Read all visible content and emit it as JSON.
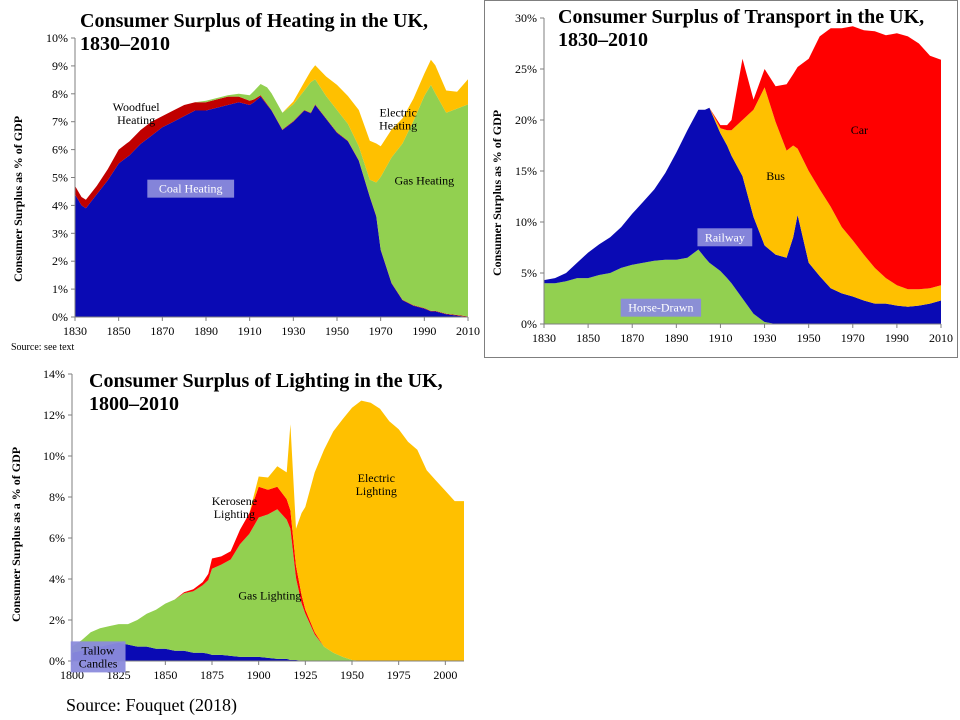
{
  "colors": {
    "coal": "#0a0ab4",
    "wood": "#c00000",
    "gas": "#92d050",
    "electric": "#ffc000",
    "horse": "#92d050",
    "railway": "#0a0ab4",
    "bus": "#ffc000",
    "car": "#ff0000",
    "tallow": "#0a0ab4",
    "kerosene": "#ff0000"
  },
  "source_small": "Source: see text",
  "source_big": "Source:  Fouquet (2018)",
  "chart_data": [
    {
      "id": "heating",
      "type": "area",
      "title": "Consumer Surplus  of Heating in the UK,\n1830–2010",
      "ylabel": "Consumer Surplus as % of GDP",
      "xlim": [
        1830,
        2010
      ],
      "ylim": [
        0,
        10
      ],
      "xticks": [
        "1830",
        "1850",
        "1870",
        "1890",
        "1910",
        "1930",
        "1950",
        "1970",
        "1990",
        "2010"
      ],
      "yticks": [
        "0%",
        "1%",
        "2%",
        "3%",
        "4%",
        "5%",
        "6%",
        "7%",
        "8%",
        "9%",
        "10%"
      ],
      "x": [
        1830,
        1833,
        1835,
        1840,
        1845,
        1850,
        1855,
        1860,
        1865,
        1870,
        1875,
        1880,
        1885,
        1890,
        1895,
        1900,
        1905,
        1910,
        1912,
        1915,
        1918,
        1920,
        1925,
        1930,
        1935,
        1938,
        1940,
        1945,
        1950,
        1955,
        1960,
        1965,
        1968,
        1970,
        1975,
        1980,
        1985,
        1990,
        1993,
        1995,
        2000,
        2005,
        2010
      ],
      "series": [
        {
          "name": "Coal Heating",
          "key": "coal",
          "values": [
            4.4,
            4.0,
            3.9,
            4.4,
            4.9,
            5.5,
            5.8,
            6.2,
            6.5,
            6.8,
            7.0,
            7.2,
            7.4,
            7.4,
            7.5,
            7.6,
            7.7,
            7.6,
            7.7,
            7.9,
            7.6,
            7.4,
            6.7,
            7.0,
            7.4,
            7.3,
            7.6,
            7.1,
            6.6,
            6.3,
            5.6,
            4.3,
            3.6,
            2.4,
            1.2,
            0.6,
            0.4,
            0.3,
            0.2,
            0.2,
            0.1,
            0.05,
            0.0
          ]
        },
        {
          "name": "Woodfuel Heating",
          "key": "wood",
          "values": [
            0.3,
            0.3,
            0.3,
            0.3,
            0.4,
            0.5,
            0.5,
            0.5,
            0.5,
            0.4,
            0.4,
            0.4,
            0.3,
            0.3,
            0.3,
            0.3,
            0.2,
            0.15,
            0.1,
            0.05,
            0.03,
            0.02,
            0.02,
            0.02,
            0.02,
            0.02,
            0.02,
            0.02,
            0.02,
            0.02,
            0.02,
            0.02,
            0.02,
            0.02,
            0.02,
            0.02,
            0.02,
            0.02,
            0.02,
            0.02,
            0.02,
            0.02,
            0.02
          ]
        },
        {
          "name": "Gas Heating",
          "key": "gas",
          "values": [
            0,
            0,
            0,
            0,
            0,
            0,
            0,
            0,
            0,
            0,
            0,
            0,
            0,
            0.05,
            0.05,
            0.05,
            0.1,
            0.2,
            0.3,
            0.4,
            0.6,
            0.6,
            0.6,
            0.6,
            0.7,
            1.1,
            0.9,
            0.8,
            0.8,
            0.6,
            0.5,
            0.6,
            1.2,
            2.6,
            4.5,
            5.6,
            6.6,
            7.6,
            8.1,
            7.8,
            7.2,
            7.4,
            7.6
          ]
        },
        {
          "name": "Electric Heating",
          "key": "electric",
          "values": [
            0,
            0,
            0,
            0,
            0,
            0,
            0,
            0,
            0,
            0,
            0,
            0,
            0,
            0,
            0,
            0,
            0,
            0,
            0,
            0,
            0,
            0,
            0,
            0.1,
            0.3,
            0.4,
            0.5,
            0.7,
            0.9,
            1.0,
            1.3,
            1.4,
            1.4,
            1.1,
            1.0,
            0.9,
            0.8,
            0.8,
            0.9,
            1.0,
            0.8,
            0.6,
            0.9
          ]
        }
      ],
      "annotations": [
        {
          "text": "Woodfuel\nHeating",
          "x": 1858,
          "y": 7.3
        },
        {
          "text": "Electric\nHeating",
          "x": 1978,
          "y": 7.1
        },
        {
          "text": "Gas Heating",
          "x": 1990,
          "y": 4.9
        },
        {
          "text": "Coal Heating",
          "x": 1883,
          "y": 4.6,
          "boxed": true
        }
      ]
    },
    {
      "id": "transport",
      "type": "area",
      "title": "Consumer Surplus  of Transport  in the UK,\n1830–2010",
      "ylabel": "Consumer Surplus as % of GDP",
      "xlim": [
        1830,
        2010
      ],
      "ylim": [
        0,
        30
      ],
      "xticks": [
        "1830",
        "1850",
        "1870",
        "1890",
        "1910",
        "1930",
        "1950",
        "1970",
        "1990",
        "2010"
      ],
      "yticks": [
        "0%",
        "5%",
        "10%",
        "15%",
        "20%",
        "25%",
        "30%"
      ],
      "x": [
        1830,
        1835,
        1840,
        1845,
        1850,
        1855,
        1860,
        1865,
        1870,
        1875,
        1880,
        1885,
        1890,
        1895,
        1900,
        1903,
        1905,
        1910,
        1913,
        1915,
        1920,
        1925,
        1930,
        1935,
        1940,
        1943,
        1945,
        1950,
        1955,
        1960,
        1965,
        1970,
        1975,
        1980,
        1985,
        1990,
        1995,
        2000,
        2005,
        2010
      ],
      "series": [
        {
          "name": "Horse-Drawn",
          "key": "horse",
          "values": [
            4.0,
            4.0,
            4.2,
            4.5,
            4.5,
            4.8,
            5.0,
            5.5,
            5.8,
            6.0,
            6.2,
            6.3,
            6.3,
            6.5,
            7.3,
            6.5,
            6.0,
            5.2,
            4.5,
            4.0,
            2.5,
            1.0,
            0.2,
            0,
            0,
            0,
            0,
            0,
            0,
            0,
            0,
            0,
            0,
            0,
            0,
            0,
            0,
            0,
            0,
            0
          ]
        },
        {
          "name": "Railway",
          "key": "railway",
          "values": [
            0.3,
            0.5,
            0.8,
            1.5,
            2.5,
            3.0,
            3.5,
            4.0,
            5.0,
            6.0,
            7.0,
            8.5,
            10.5,
            12.5,
            13.7,
            14.5,
            15.2,
            13.5,
            13.0,
            12.5,
            12.0,
            9.5,
            7.5,
            6.8,
            6.5,
            8.5,
            10.7,
            6.0,
            4.7,
            3.5,
            3.0,
            2.7,
            2.3,
            2.0,
            2.0,
            1.8,
            1.7,
            1.8,
            2.0,
            2.3
          ]
        },
        {
          "name": "Bus",
          "key": "bus",
          "values": [
            0,
            0,
            0,
            0,
            0,
            0,
            0,
            0,
            0,
            0,
            0,
            0,
            0,
            0,
            0,
            0,
            0,
            0.5,
            1.5,
            2.5,
            5.5,
            10.5,
            15.5,
            13.0,
            10.5,
            9.0,
            6.5,
            9.0,
            8.5,
            8.0,
            6.5,
            5.5,
            4.5,
            3.5,
            2.5,
            2.0,
            1.7,
            1.6,
            1.5,
            1.5
          ]
        },
        {
          "name": "Car",
          "key": "car",
          "values": [
            0,
            0,
            0,
            0,
            0,
            0,
            0,
            0,
            0,
            0,
            0,
            0,
            0,
            0,
            0,
            0,
            0,
            0.3,
            0.5,
            1.0,
            6.0,
            1.0,
            1.8,
            3.5,
            6.5,
            7.0,
            8.0,
            11.0,
            15.0,
            17.5,
            19.5,
            21.0,
            22.0,
            23.2,
            23.8,
            24.7,
            24.8,
            24.1,
            22.8,
            22.1
          ]
        }
      ],
      "annotations": [
        {
          "text": "Car",
          "x": 1973,
          "y": 19
        },
        {
          "text": "Bus",
          "x": 1935,
          "y": 14.5
        },
        {
          "text": "Railway",
          "x": 1912,
          "y": 8.5,
          "boxed": true
        },
        {
          "text": "Horse-Drawn",
          "x": 1883,
          "y": 1.6,
          "boxed": true
        }
      ]
    },
    {
      "id": "lighting",
      "type": "area",
      "title": "Consumer Surplus  of Lighting in the UK,\n1800–2010",
      "ylabel": "Consumer Surplus as a % of GDP",
      "xlim": [
        1800,
        2010
      ],
      "ylim": [
        0,
        14
      ],
      "xticks": [
        "1800",
        "1825",
        "1850",
        "1875",
        "1900",
        "1925",
        "1950",
        "1975",
        "2000"
      ],
      "yticks": [
        "0%",
        "2%",
        "4%",
        "6%",
        "8%",
        "10%",
        "12%",
        "14%"
      ],
      "x": [
        1800,
        1805,
        1810,
        1815,
        1820,
        1825,
        1830,
        1835,
        1840,
        1845,
        1850,
        1855,
        1860,
        1865,
        1870,
        1873,
        1875,
        1880,
        1885,
        1890,
        1895,
        1900,
        1905,
        1910,
        1915,
        1917,
        1920,
        1923,
        1925,
        1930,
        1935,
        1940,
        1945,
        1950,
        1955,
        1960,
        1965,
        1970,
        1975,
        1980,
        1985,
        1990,
        1995,
        2000,
        2005,
        2010
      ],
      "series": [
        {
          "name": "Tallow\nCandles",
          "key": "tallow",
          "values": [
            0.4,
            0.5,
            0.6,
            0.7,
            0.8,
            0.9,
            0.8,
            0.7,
            0.7,
            0.6,
            0.6,
            0.5,
            0.5,
            0.4,
            0.4,
            0.35,
            0.3,
            0.3,
            0.25,
            0.2,
            0.2,
            0.2,
            0.15,
            0.1,
            0.1,
            0.05,
            0.05,
            0.02,
            0.01,
            0,
            0,
            0,
            0,
            0,
            0,
            0,
            0,
            0,
            0,
            0,
            0,
            0,
            0,
            0,
            0,
            0
          ]
        },
        {
          "name": "Gas Lighting",
          "key": "gas",
          "values": [
            0.3,
            0.5,
            0.8,
            0.9,
            0.9,
            0.9,
            1.0,
            1.3,
            1.6,
            1.9,
            2.2,
            2.5,
            2.8,
            3.0,
            3.3,
            3.6,
            4.2,
            4.4,
            4.7,
            5.5,
            6.0,
            6.8,
            7.0,
            7.3,
            6.8,
            6.4,
            4.0,
            2.8,
            2.3,
            1.3,
            0.7,
            0.4,
            0.2,
            0.05,
            0,
            0,
            0,
            0,
            0,
            0,
            0,
            0,
            0,
            0,
            0,
            0
          ]
        },
        {
          "name": "Kerosene\nLighting",
          "key": "kerosene",
          "values": [
            0,
            0,
            0,
            0,
            0,
            0,
            0,
            0,
            0,
            0,
            0,
            0,
            0.05,
            0.1,
            0.15,
            0.3,
            0.5,
            0.4,
            0.4,
            0.7,
            1.0,
            1.5,
            1.2,
            1.1,
            1.0,
            0.9,
            0.6,
            0.4,
            0.2,
            0.1,
            0,
            0,
            0,
            0,
            0,
            0,
            0,
            0,
            0,
            0,
            0,
            0,
            0,
            0,
            0,
            0
          ]
        },
        {
          "name": "Electric\nLighting",
          "key": "electric",
          "values": [
            0,
            0,
            0,
            0,
            0,
            0,
            0,
            0,
            0,
            0,
            0,
            0,
            0,
            0,
            0,
            0,
            0,
            0,
            0,
            0,
            0,
            0.5,
            0.6,
            1.0,
            1.3,
            4.2,
            1.8,
            4.0,
            5.0,
            7.8,
            9.6,
            10.8,
            11.6,
            12.3,
            12.7,
            12.6,
            12.3,
            11.7,
            11.3,
            10.7,
            10.3,
            9.3,
            8.8,
            8.3,
            7.8,
            7.8
          ]
        }
      ],
      "annotations": [
        {
          "text": "Electric\nLighting",
          "x": 1963,
          "y": 8.6
        },
        {
          "text": "Kerosene\nLighting",
          "x": 1887,
          "y": 7.5
        },
        {
          "text": "Gas Lighting",
          "x": 1906,
          "y": 3.2
        },
        {
          "text": "Tallow\nCandles",
          "x": 1814,
          "y": 0.2,
          "boxed": true
        }
      ]
    }
  ]
}
